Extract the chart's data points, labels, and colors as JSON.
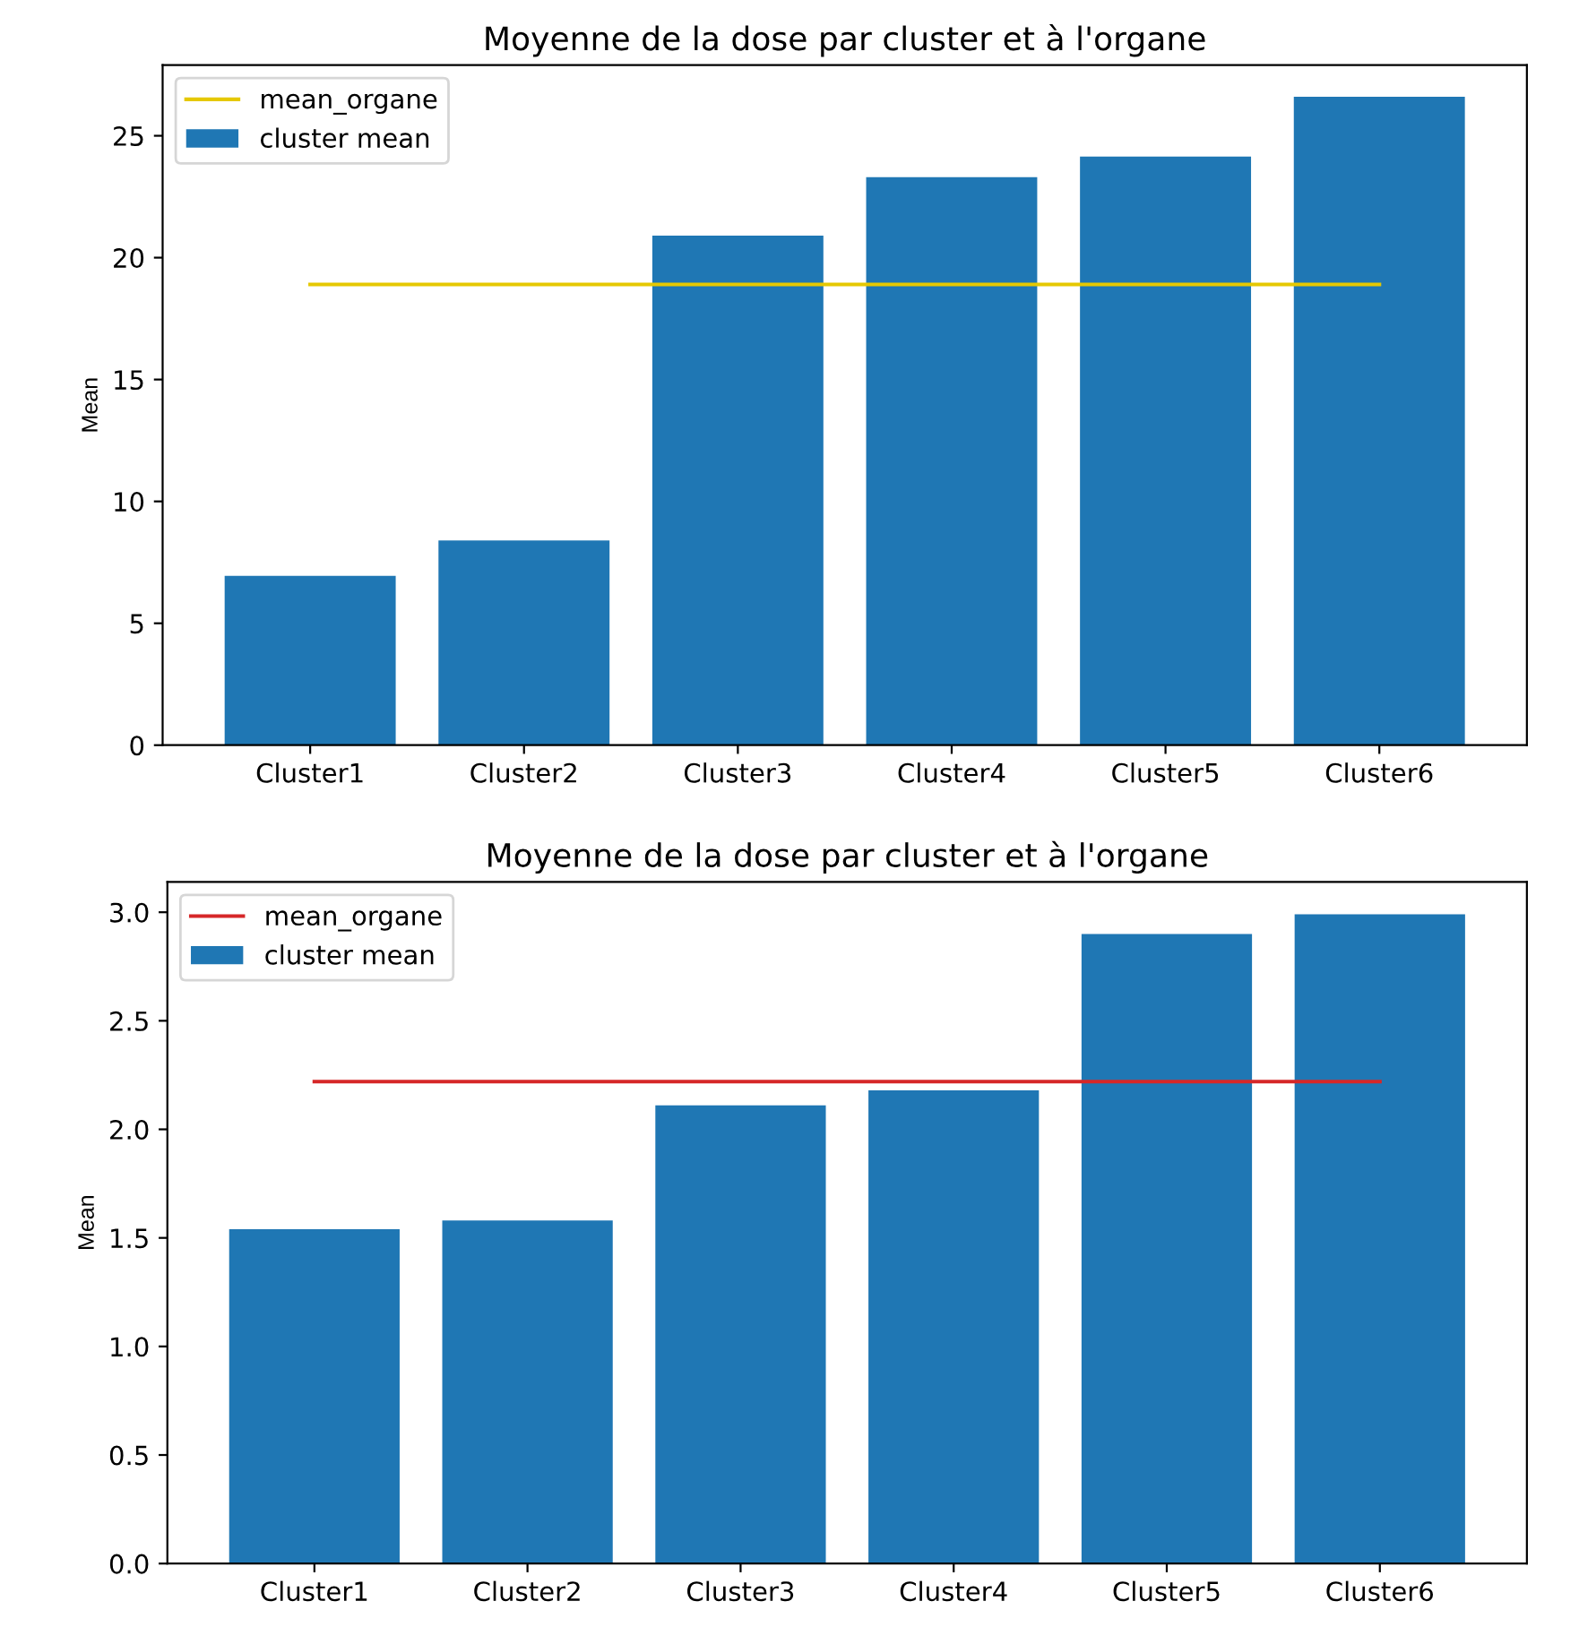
{
  "chart_data": [
    {
      "type": "bar",
      "title": "Moyenne de la dose par cluster et à l'organe",
      "ylabel": "Mean",
      "categories": [
        "Cluster1",
        "Cluster2",
        "Cluster3",
        "Cluster4",
        "Cluster5",
        "Cluster6"
      ],
      "series": [
        {
          "name": "mean_organe",
          "type": "line",
          "color": "#e5c800",
          "values": [
            18.9,
            18.9,
            18.9,
            18.9,
            18.9,
            18.9
          ]
        },
        {
          "name": "cluster mean",
          "color": "#1f77b4",
          "values": [
            6.95,
            8.4,
            20.9,
            23.3,
            24.15,
            26.6
          ]
        }
      ],
      "ylim": [
        0,
        27.9
      ],
      "yticks": [
        0,
        5,
        10,
        15,
        20,
        25
      ],
      "grid": false,
      "legend": "top left",
      "marker": "none"
    },
    {
      "type": "bar",
      "title": "Moyenne de la dose par cluster et à l'organe",
      "ylabel": "Mean",
      "categories": [
        "Cluster1",
        "Cluster2",
        "Cluster3",
        "Cluster4",
        "Cluster5",
        "Cluster6"
      ],
      "series": [
        {
          "name": "mean_organe",
          "type": "line",
          "color": "#d62728",
          "values": [
            2.22,
            2.22,
            2.22,
            2.22,
            2.22,
            2.22
          ]
        },
        {
          "name": "cluster mean",
          "color": "#1f77b4",
          "values": [
            1.54,
            1.58,
            2.11,
            2.18,
            2.9,
            2.99
          ]
        }
      ],
      "ylim": [
        0,
        3.14
      ],
      "yticks": [
        {
          "value": 0,
          "label": "0.0"
        },
        {
          "value": 0.5,
          "label": "0.5"
        },
        {
          "value": 1,
          "label": "1.0"
        },
        {
          "value": 1.5,
          "label": "1.5"
        },
        {
          "value": 2,
          "label": "2.0"
        },
        {
          "value": 2.5,
          "label": "2.5"
        },
        {
          "value": 3,
          "label": "3.0"
        }
      ],
      "grid": false,
      "legend": "top left",
      "marker": "none"
    }
  ]
}
